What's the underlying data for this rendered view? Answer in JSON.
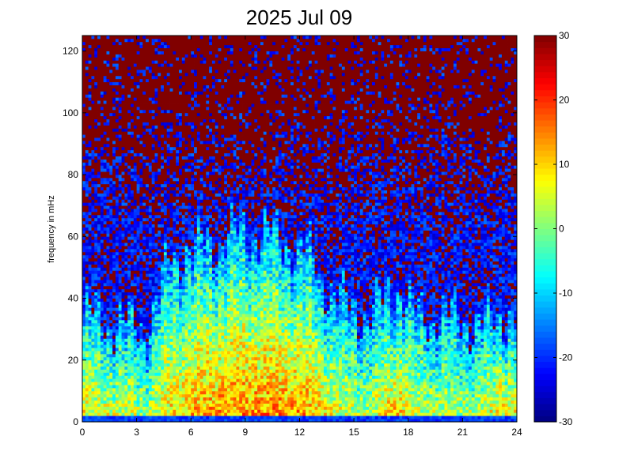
{
  "chart_data": {
    "type": "heatmap",
    "title": "2025 Jul 09",
    "xlabel": "",
    "ylabel": "frequency in mHz",
    "xlim": [
      0,
      24
    ],
    "ylim": [
      0,
      125
    ],
    "x_ticks": [
      "0",
      "3",
      "6",
      "9",
      "12",
      "15",
      "18",
      "21",
      "24"
    ],
    "y_ticks": [
      "0",
      "20",
      "40",
      "60",
      "80",
      "100",
      "120"
    ],
    "colorbar": {
      "colormap": "jet",
      "clim": [
        -30,
        30
      ],
      "ticks": [
        "30",
        "20",
        "10",
        "0",
        "-10",
        "-20",
        "-30"
      ]
    },
    "grid": false,
    "noise_floor_profile": {
      "description_hours": [
        0,
        2,
        3.5,
        5,
        7,
        9,
        11,
        12.5,
        14,
        16,
        17.3,
        18.5,
        20,
        22,
        23,
        24
      ],
      "top_of_active_band_mHz": [
        35,
        33,
        30,
        55,
        58,
        62,
        60,
        55,
        40,
        35,
        45,
        35,
        35,
        32,
        35,
        35
      ],
      "peak_level_dB": [
        8,
        6,
        3,
        10,
        14,
        15,
        15,
        13,
        6,
        4,
        12,
        5,
        4,
        4,
        10,
        8
      ]
    }
  }
}
